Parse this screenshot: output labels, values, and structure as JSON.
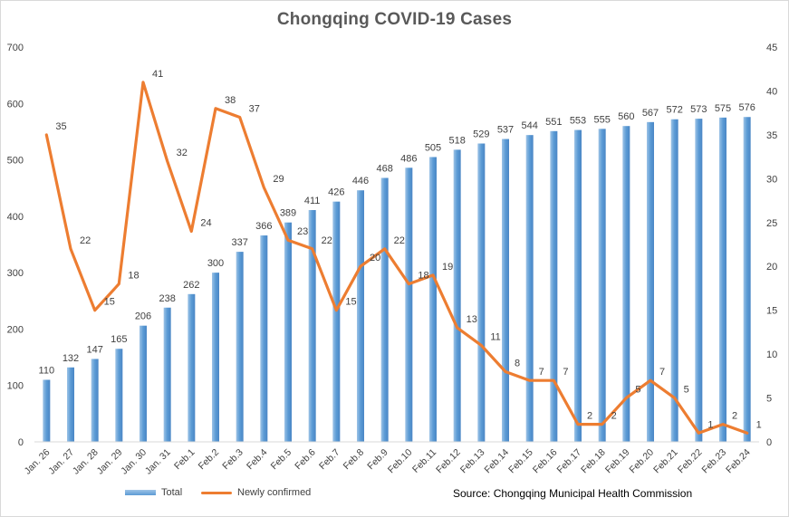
{
  "chart_data": {
    "type": "bar+line",
    "title": "Chongqing  COVID-19 Cases",
    "categories": [
      "Jan. 26",
      "Jan. 27",
      "Jan. 28",
      "Jan. 29",
      "Jan. 30",
      "Jan. 31",
      "Feb.1",
      "Feb.2",
      "Feb.3",
      "Feb.4",
      "Feb.5",
      "Feb.6",
      "Feb.7",
      "Feb.8",
      "Feb.9",
      "Feb.10",
      "Feb.11",
      "Feb.12",
      "Feb.13",
      "Feb.14",
      "Feb.15",
      "Feb.16",
      "Feb.17",
      "Feb.18",
      "Feb.19",
      "Feb.20",
      "Feb.21",
      "Feb.22",
      "Feb.23",
      "Feb.24"
    ],
    "series": [
      {
        "name": "Total",
        "type": "bar",
        "axis": "left",
        "values": [
          110,
          132,
          147,
          165,
          206,
          238,
          262,
          300,
          337,
          366,
          389,
          411,
          426,
          446,
          468,
          486,
          505,
          518,
          529,
          537,
          544,
          551,
          553,
          555,
          560,
          567,
          572,
          573,
          575,
          576
        ]
      },
      {
        "name": "Newly confirmed",
        "type": "line",
        "axis": "right",
        "values": [
          35,
          22,
          15,
          18,
          41,
          32,
          24,
          38,
          37,
          29,
          23,
          22,
          15,
          20,
          22,
          18,
          19,
          13,
          11,
          8,
          7,
          7,
          2,
          2,
          5,
          7,
          5,
          1,
          2,
          1
        ]
      }
    ],
    "y_left": {
      "min": 0,
      "max": 700,
      "ticks": [
        0,
        100,
        200,
        300,
        400,
        500,
        600,
        700
      ]
    },
    "y_right": {
      "min": 0,
      "max": 45,
      "ticks": [
        0,
        5,
        10,
        15,
        20,
        25,
        30,
        35,
        40,
        45
      ]
    },
    "grid": false,
    "legend_placement": "bottom-left",
    "colors": {
      "bar": "#5b9bd5",
      "bar_light": "#9dc3e6",
      "line": "#ed7d31",
      "text": "#404040",
      "title": "#595959"
    }
  },
  "source": "Source: Chongqing Municipal Health Commission"
}
